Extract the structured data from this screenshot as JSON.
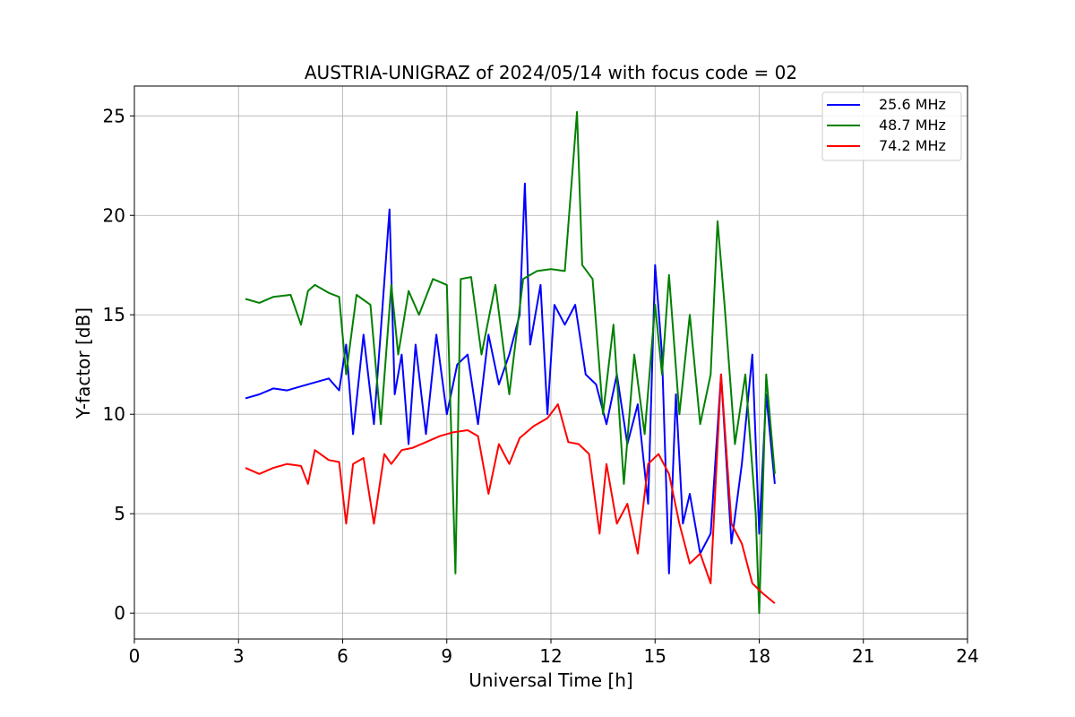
{
  "chart_data": {
    "type": "line",
    "title": "AUSTRIA-UNIGRAZ of 2024/05/14 with focus code = 02",
    "xlabel": "Universal Time [h]",
    "ylabel": "Y-factor [dB]",
    "xlim": [
      0,
      24
    ],
    "ylim": [
      -1.3,
      26.5
    ],
    "xticks": [
      0,
      3,
      6,
      9,
      12,
      15,
      18,
      21,
      24
    ],
    "yticks": [
      0,
      5,
      10,
      15,
      20,
      25
    ],
    "grid": true,
    "legend_position": "top-right",
    "series": [
      {
        "name": "25.6 MHz",
        "color": "#0000ff",
        "x": [
          3.2,
          3.6,
          4.0,
          4.4,
          4.8,
          5.2,
          5.6,
          5.9,
          6.1,
          6.3,
          6.6,
          6.9,
          7.1,
          7.35,
          7.5,
          7.7,
          7.9,
          8.1,
          8.4,
          8.7,
          9.0,
          9.3,
          9.6,
          9.9,
          10.2,
          10.5,
          10.8,
          11.1,
          11.25,
          11.4,
          11.7,
          11.9,
          12.1,
          12.4,
          12.7,
          13.0,
          13.3,
          13.6,
          13.9,
          14.2,
          14.5,
          14.8,
          15.0,
          15.2,
          15.4,
          15.6,
          15.8,
          16.0,
          16.3,
          16.6,
          16.9,
          17.2,
          17.5,
          17.8,
          18.0,
          18.2,
          18.45
        ],
        "y": [
          10.8,
          11.0,
          11.3,
          11.2,
          11.4,
          11.6,
          11.8,
          11.2,
          13.5,
          9.0,
          14.0,
          9.5,
          14.2,
          20.3,
          11.0,
          13.0,
          8.5,
          13.5,
          9.0,
          14.0,
          10.0,
          12.5,
          13.0,
          9.5,
          14.0,
          11.5,
          13.0,
          15.0,
          21.6,
          13.5,
          16.5,
          10.0,
          15.5,
          14.5,
          15.5,
          12.0,
          11.5,
          9.5,
          12.0,
          8.5,
          10.5,
          5.5,
          17.5,
          13.0,
          2.0,
          11.0,
          4.5,
          6.0,
          3.0,
          4.0,
          12.0,
          3.5,
          7.5,
          13.0,
          4.0,
          11.0,
          6.5
        ]
      },
      {
        "name": "48.7 MHz",
        "color": "#008000",
        "x": [
          3.2,
          3.6,
          4.0,
          4.5,
          4.8,
          5.0,
          5.2,
          5.6,
          5.9,
          6.1,
          6.4,
          6.8,
          7.1,
          7.4,
          7.6,
          7.9,
          8.2,
          8.6,
          9.0,
          9.25,
          9.4,
          9.7,
          10.0,
          10.4,
          10.8,
          11.2,
          11.6,
          12.0,
          12.4,
          12.75,
          12.9,
          13.2,
          13.5,
          13.8,
          14.1,
          14.4,
          14.7,
          15.0,
          15.2,
          15.4,
          15.7,
          16.0,
          16.3,
          16.6,
          16.8,
          17.0,
          17.3,
          17.6,
          17.9,
          18.0,
          18.2,
          18.45
        ],
        "y": [
          15.8,
          15.6,
          15.9,
          16.0,
          14.5,
          16.2,
          16.5,
          16.1,
          15.9,
          12.0,
          16.0,
          15.5,
          9.5,
          16.5,
          13.0,
          16.2,
          15.0,
          16.8,
          16.5,
          2.0,
          16.8,
          16.9,
          13.0,
          16.5,
          11.0,
          16.8,
          17.2,
          17.3,
          17.2,
          25.2,
          17.5,
          16.8,
          10.0,
          14.5,
          6.5,
          13.0,
          9.0,
          15.5,
          12.0,
          17.0,
          10.0,
          15.0,
          9.5,
          12.0,
          19.7,
          15.5,
          8.5,
          12.0,
          5.0,
          0.0,
          12.0,
          7.0
        ]
      },
      {
        "name": "74.2 MHz",
        "color": "#ff0000",
        "x": [
          3.2,
          3.6,
          4.0,
          4.4,
          4.8,
          5.0,
          5.2,
          5.6,
          5.9,
          6.1,
          6.3,
          6.6,
          6.9,
          7.2,
          7.4,
          7.7,
          8.0,
          8.4,
          8.8,
          9.2,
          9.6,
          9.9,
          10.2,
          10.5,
          10.8,
          11.1,
          11.5,
          11.9,
          12.2,
          12.5,
          12.8,
          13.1,
          13.4,
          13.6,
          13.9,
          14.2,
          14.5,
          14.8,
          15.1,
          15.4,
          15.7,
          16.0,
          16.3,
          16.6,
          16.9,
          17.2,
          17.5,
          17.8,
          18.1,
          18.45
        ],
        "y": [
          7.3,
          7.0,
          7.3,
          7.5,
          7.4,
          6.5,
          8.2,
          7.7,
          7.6,
          4.5,
          7.5,
          7.8,
          4.5,
          8.0,
          7.5,
          8.2,
          8.3,
          8.6,
          8.9,
          9.1,
          9.2,
          8.9,
          6.0,
          8.5,
          7.5,
          8.8,
          9.4,
          9.8,
          10.5,
          8.6,
          8.5,
          8.0,
          4.0,
          7.5,
          4.5,
          5.5,
          3.0,
          7.5,
          8.0,
          7.0,
          4.5,
          2.5,
          3.0,
          1.5,
          12.0,
          4.5,
          3.5,
          1.5,
          1.0,
          0.5
        ]
      }
    ]
  }
}
